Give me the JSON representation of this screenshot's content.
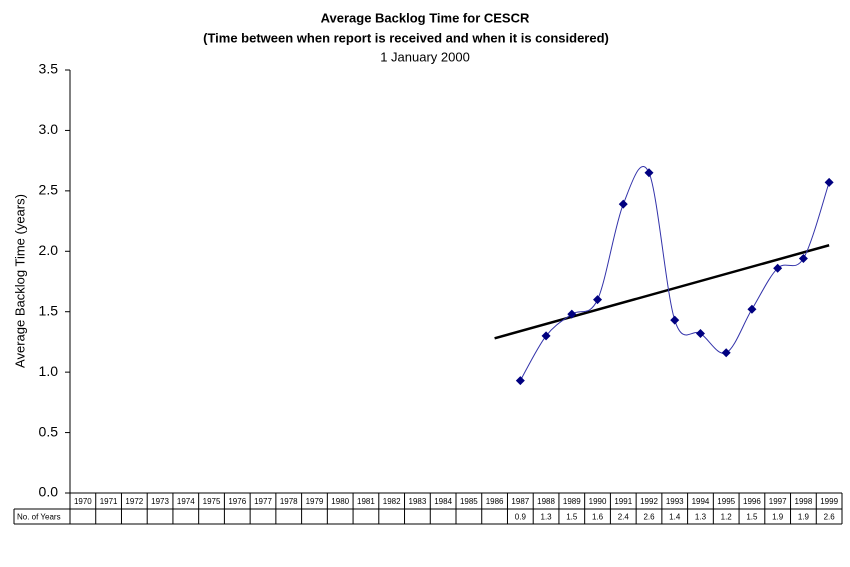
{
  "chart_data": {
    "type": "line",
    "title": "Average Backlog Time for CESCR",
    "subtitle": [
      "(Time between when report is received and when it is considered)",
      "1 January 2000"
    ],
    "y_label": "Average Backlog Time (years)",
    "categories": [
      "1970",
      "1971",
      "1972",
      "1973",
      "1974",
      "1975",
      "1976",
      "1977",
      "1978",
      "1979",
      "1980",
      "1981",
      "1982",
      "1983",
      "1984",
      "1985",
      "1986",
      "1987",
      "1988",
      "1989",
      "1990",
      "1991",
      "1992",
      "1993",
      "1994",
      "1995",
      "1996",
      "1997",
      "1998",
      "1999"
    ],
    "series": [
      {
        "name": "No. of Years",
        "color": "#000080",
        "line_color": "#3333aa",
        "smooth": true,
        "values": [
          null,
          null,
          null,
          null,
          null,
          null,
          null,
          null,
          null,
          null,
          null,
          null,
          null,
          null,
          null,
          null,
          null,
          0.93,
          1.3,
          1.48,
          1.6,
          2.39,
          2.65,
          1.43,
          1.32,
          1.16,
          1.52,
          1.86,
          1.94,
          2.57
        ],
        "value_labels": [
          null,
          null,
          null,
          null,
          null,
          null,
          null,
          null,
          null,
          null,
          null,
          null,
          null,
          null,
          null,
          null,
          null,
          "0.9",
          "1.3",
          "1.5",
          "1.6",
          "2.4",
          "2.6",
          "1.4",
          "1.3",
          "1.2",
          "1.5",
          "1.9",
          "1.9",
          "2.6"
        ]
      }
    ],
    "trendline": {
      "color": "#000000",
      "values": [
        null,
        null,
        null,
        null,
        null,
        null,
        null,
        null,
        null,
        null,
        null,
        null,
        null,
        null,
        null,
        null,
        1.28,
        null,
        null,
        null,
        null,
        null,
        null,
        null,
        null,
        null,
        null,
        null,
        null,
        2.05
      ]
    },
    "ylim": [
      0,
      3.5
    ],
    "yticks": [
      {
        "value": 0,
        "label": "0.0"
      },
      {
        "value": 0.5,
        "label": "0.5"
      },
      {
        "value": 1,
        "label": "1.0"
      },
      {
        "value": 1.5,
        "label": "1.5"
      },
      {
        "value": 2,
        "label": "2.0"
      },
      {
        "value": 2.5,
        "label": "2.5"
      },
      {
        "value": 3,
        "label": "3.0"
      },
      {
        "value": 3.5,
        "label": "3.5"
      }
    ],
    "grid": false
  }
}
